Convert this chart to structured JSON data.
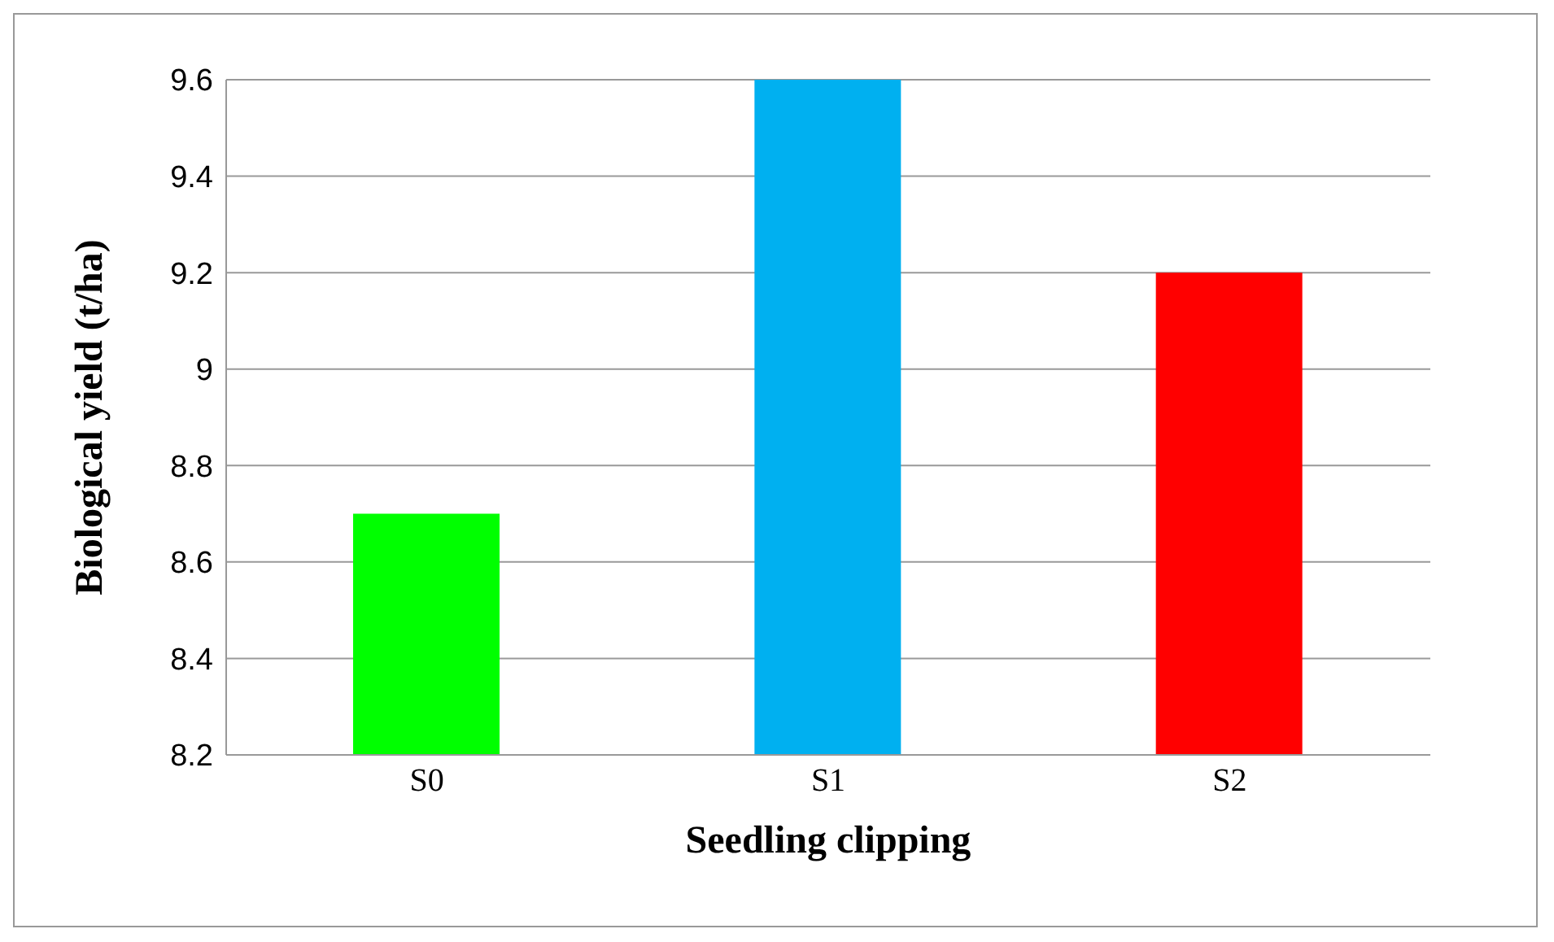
{
  "chart_data": {
    "type": "bar",
    "xlabel": "Seedling clipping",
    "ylabel": "Biological yield (t/ha)",
    "categories": [
      "S0",
      "S1",
      "S2"
    ],
    "values": [
      8.7,
      9.6,
      9.2
    ],
    "colors": [
      "#00ff00",
      "#00b0f0",
      "#ff0000"
    ],
    "ylim": [
      8.2,
      9.6
    ],
    "yticks": [
      8.2,
      8.4,
      8.6,
      8.8,
      9,
      9.2,
      9.4,
      9.6
    ],
    "grid": "y",
    "legend": false
  }
}
